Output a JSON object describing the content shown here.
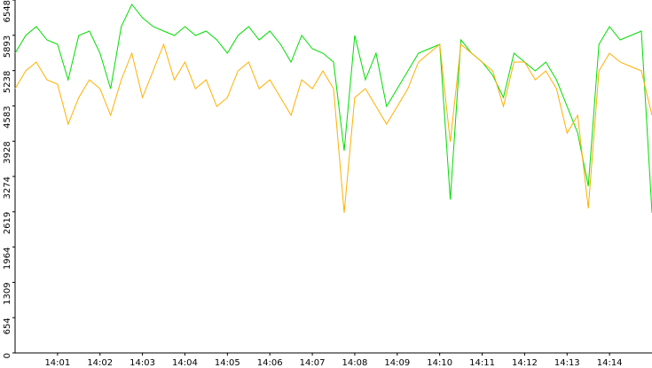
{
  "chart_data": {
    "type": "line",
    "x": [
      0,
      0.25,
      0.5,
      0.75,
      1,
      1.25,
      1.5,
      1.75,
      2,
      2.25,
      2.5,
      2.75,
      3,
      3.25,
      3.5,
      3.75,
      4,
      4.25,
      4.5,
      4.75,
      5,
      5.25,
      5.5,
      5.75,
      6,
      6.25,
      6.5,
      6.75,
      7,
      7.25,
      7.5,
      7.75,
      8,
      8.25,
      8.5,
      8.75,
      9,
      9.25,
      9.5,
      9.75,
      10,
      10.25,
      10.5,
      10.75,
      11,
      11.25,
      11.5,
      11.75,
      12,
      12.25,
      12.5,
      12.75,
      13,
      13.25,
      13.5,
      13.75,
      14,
      14.25,
      14.5,
      14.75,
      15
    ],
    "series": [
      {
        "color": "#00dd00",
        "values": [
          5561,
          5890,
          6054,
          5808,
          5725,
          5067,
          5890,
          5972,
          5561,
          4903,
          6054,
          6466,
          6219,
          6054,
          5972,
          5890,
          6054,
          5890,
          5972,
          5808,
          5561,
          5890,
          6054,
          5808,
          5972,
          5725,
          5396,
          5890,
          5643,
          5561,
          5396,
          3751,
          5890,
          5067,
          5561,
          4574,
          4903,
          5232,
          5561,
          5643,
          5725,
          2846,
          5808,
          5561,
          5396,
          5150,
          4738,
          5561,
          5396,
          5232,
          5396,
          5067,
          4574,
          4080,
          3093,
          5725,
          6054,
          5808,
          5890,
          5972,
          2600
        ]
      },
      {
        "color": "#ffb000",
        "values": [
          4903,
          5232,
          5396,
          5067,
          4985,
          4245,
          4738,
          5067,
          4903,
          4409,
          5067,
          5561,
          4738,
          5232,
          5725,
          5067,
          5396,
          4903,
          5067,
          4574,
          4738,
          5232,
          5396,
          4903,
          5067,
          4738,
          4409,
          5067,
          4903,
          5232,
          4903,
          2600,
          4738,
          4903,
          4574,
          4245,
          4574,
          4903,
          5396,
          5561,
          5725,
          3916,
          5725,
          5561,
          5396,
          5232,
          4574,
          5396,
          5396,
          5067,
          5232,
          4903,
          4080,
          4409,
          2682,
          5232,
          5561,
          5396,
          5314,
          5232,
          4409
        ]
      }
    ],
    "xlim": [
      0,
      15
    ],
    "xticks": [
      {
        "value": 1,
        "label": "14:01"
      },
      {
        "value": 2,
        "label": "14:02"
      },
      {
        "value": 3,
        "label": "14:03"
      },
      {
        "value": 4,
        "label": "14:04"
      },
      {
        "value": 5,
        "label": "14:05"
      },
      {
        "value": 6,
        "label": "14:06"
      },
      {
        "value": 7,
        "label": "14:07"
      },
      {
        "value": 8,
        "label": "14:08"
      },
      {
        "value": 9,
        "label": "14:09"
      },
      {
        "value": 10,
        "label": "14:10"
      },
      {
        "value": 11,
        "label": "14:11"
      },
      {
        "value": 12,
        "label": "14:12"
      },
      {
        "value": 13,
        "label": "14:13"
      },
      {
        "value": 14,
        "label": "14:14"
      }
    ],
    "ylim": [
      0,
      6548
    ],
    "yticks": [
      0,
      654,
      1309,
      1964,
      2619,
      3274,
      3928,
      4583,
      5238,
      5893,
      6548
    ]
  }
}
